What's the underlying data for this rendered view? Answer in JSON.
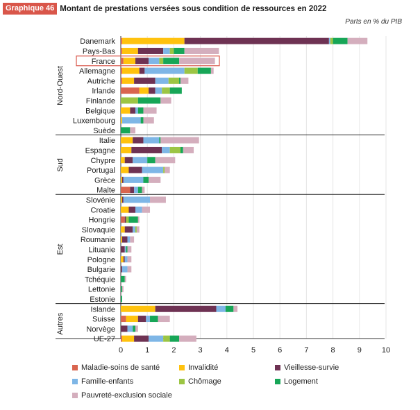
{
  "header": {
    "badge": "Graphique 46",
    "title": "Montant de prestations versées sous condition de ressources en 2022"
  },
  "units_note": "Parts en % du PIB",
  "colors": {
    "maladie": "#d9654f",
    "invalidite": "#ffc20e",
    "vieillesse": "#6e3253",
    "famille": "#7eb6e6",
    "chomage": "#9cc544",
    "logement": "#17a657",
    "pauvrete": "#d4aebd"
  },
  "chart_data": {
    "type": "bar",
    "orientation": "horizontal",
    "stacked": true,
    "xlim": [
      0,
      10
    ],
    "xticks": [
      "0",
      "1",
      "2",
      "3",
      "4",
      "5",
      "6",
      "7",
      "8",
      "9",
      "10"
    ],
    "highlight": "France",
    "series_keys": [
      "maladie",
      "invalidite",
      "vieillesse",
      "famille",
      "chomage",
      "logement",
      "pauvrete"
    ],
    "series_names": [
      "Maladie-soins de santé",
      "Invalidité",
      "Vieillesse-survie",
      "Famille-enfants",
      "Chômage",
      "Logement",
      "Pauvreté-exclusion sociale"
    ],
    "groups": [
      {
        "name": "Nord-Ouest",
        "countries": [
          {
            "name": "Danemark",
            "values": [
              0.05,
              2.35,
              5.45,
              0.05,
              0.1,
              0.55,
              0.75
            ]
          },
          {
            "name": "Pays-Bas",
            "values": [
              0.05,
              0.6,
              0.95,
              0.25,
              0.15,
              0.4,
              1.3
            ]
          },
          {
            "name": "France",
            "values": [
              0.1,
              0.45,
              0.5,
              0.4,
              0.15,
              0.6,
              1.35
            ]
          },
          {
            "name": "Allemagne",
            "values": [
              0.05,
              0.65,
              0.2,
              1.5,
              0.5,
              0.5,
              0.1
            ]
          },
          {
            "name": "Autriche",
            "values": [
              0.05,
              0.45,
              0.8,
              0.5,
              0.4,
              0.05,
              0.3
            ]
          },
          {
            "name": "Irlande",
            "values": [
              0.7,
              0.35,
              0.25,
              0.25,
              0.3,
              0.45,
              0.0
            ]
          },
          {
            "name": "Finlande",
            "values": [
              0.0,
              0.0,
              0.0,
              0.0,
              0.65,
              0.85,
              0.4
            ]
          },
          {
            "name": "Belgique",
            "values": [
              0.0,
              0.35,
              0.2,
              0.1,
              0.0,
              0.2,
              0.5
            ]
          },
          {
            "name": "Luxembourg",
            "values": [
              0.0,
              0.05,
              0.0,
              0.7,
              0.0,
              0.1,
              0.4
            ]
          },
          {
            "name": "Suède",
            "values": [
              0.0,
              0.0,
              0.0,
              0.0,
              0.0,
              0.35,
              0.2
            ]
          }
        ]
      },
      {
        "name": "Sud",
        "countries": [
          {
            "name": "Italie",
            "values": [
              0.0,
              0.45,
              0.4,
              0.6,
              0.0,
              0.05,
              1.45
            ]
          },
          {
            "name": "Espagne",
            "values": [
              0.0,
              0.4,
              1.15,
              0.3,
              0.4,
              0.1,
              0.4
            ]
          },
          {
            "name": "Chypre",
            "values": [
              0.0,
              0.15,
              0.3,
              0.55,
              0.0,
              0.3,
              0.75
            ]
          },
          {
            "name": "Portugal",
            "values": [
              0.0,
              0.3,
              0.5,
              0.8,
              0.05,
              0.0,
              0.2
            ]
          },
          {
            "name": "Grèce",
            "values": [
              0.0,
              0.05,
              0.05,
              0.75,
              0.0,
              0.2,
              0.45
            ]
          },
          {
            "name": "Malte",
            "values": [
              0.35,
              0.0,
              0.15,
              0.15,
              0.0,
              0.15,
              0.1
            ]
          }
        ]
      },
      {
        "name": "Est",
        "countries": [
          {
            "name": "Slovénie",
            "values": [
              0.0,
              0.05,
              0.05,
              1.0,
              0.0,
              0.0,
              0.6
            ]
          },
          {
            "name": "Croatie",
            "values": [
              0.0,
              0.3,
              0.25,
              0.25,
              0.0,
              0.0,
              0.3
            ]
          },
          {
            "name": "Hongrie",
            "values": [
              0.15,
              0.0,
              0.05,
              0.0,
              0.1,
              0.35,
              0.05
            ]
          },
          {
            "name": "Slovaquie",
            "values": [
              0.0,
              0.15,
              0.3,
              0.1,
              0.05,
              0.0,
              0.1
            ]
          },
          {
            "name": "Roumanie",
            "values": [
              0.0,
              0.05,
              0.2,
              0.1,
              0.0,
              0.0,
              0.15
            ]
          },
          {
            "name": "Lituanie",
            "values": [
              0.0,
              0.0,
              0.15,
              0.05,
              0.0,
              0.05,
              0.15
            ]
          },
          {
            "name": "Pologne",
            "values": [
              0.0,
              0.1,
              0.05,
              0.1,
              0.0,
              0.0,
              0.15
            ]
          },
          {
            "name": "Bulgarie",
            "values": [
              0.0,
              0.0,
              0.05,
              0.2,
              0.0,
              0.0,
              0.15
            ]
          },
          {
            "name": "Tchéquie",
            "values": [
              0.0,
              0.0,
              0.0,
              0.0,
              0.0,
              0.15,
              0.05
            ]
          },
          {
            "name": "Lettonie",
            "values": [
              0.0,
              0.0,
              0.0,
              0.0,
              0.0,
              0.05,
              0.05
            ]
          },
          {
            "name": "Estonie",
            "values": [
              0.0,
              0.0,
              0.0,
              0.0,
              0.0,
              0.05,
              0.0
            ]
          }
        ]
      },
      {
        "name": "Autres",
        "countries": [
          {
            "name": "Islande",
            "values": [
              0.0,
              1.3,
              2.3,
              0.35,
              0.0,
              0.3,
              0.15
            ]
          },
          {
            "name": "Suisse",
            "values": [
              0.2,
              0.45,
              0.3,
              0.15,
              0.0,
              0.3,
              0.45
            ]
          },
          {
            "name": "Norvège",
            "values": [
              0.0,
              0.0,
              0.25,
              0.2,
              0.0,
              0.1,
              0.1
            ]
          },
          {
            "name": "UE-27",
            "values": [
              0.05,
              0.45,
              0.55,
              0.55,
              0.25,
              0.35,
              0.65
            ]
          }
        ]
      }
    ]
  }
}
